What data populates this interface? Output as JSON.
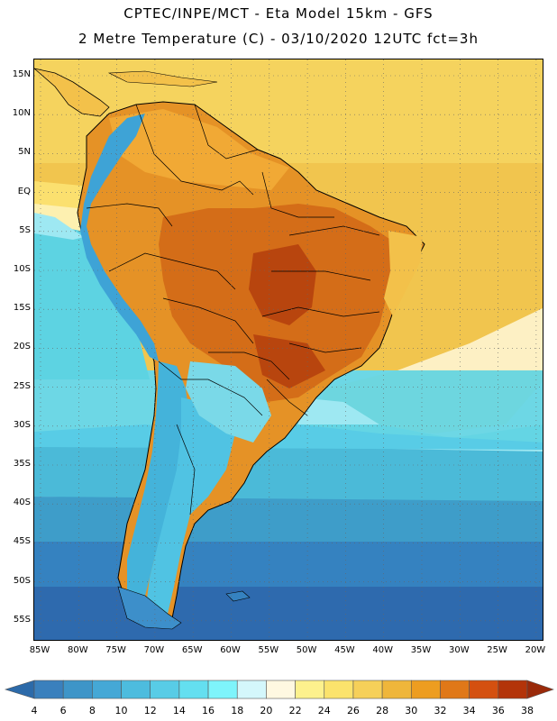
{
  "header": {
    "line1": "CPTEC/INPE/MCT -  Eta Model 15km - GFS",
    "line2": "2 Metre Temperature (C) - 03/10/2020 12UTC fct=3h"
  },
  "axes": {
    "lat_labels": [
      "15N",
      "10N",
      "5N",
      "EQ",
      "5S",
      "10S",
      "15S",
      "20S",
      "25S",
      "30S",
      "35S",
      "40S",
      "45S",
      "50S",
      "55S"
    ],
    "lon_labels": [
      "85W",
      "80W",
      "75W",
      "70W",
      "65W",
      "60W",
      "55W",
      "50W",
      "45W",
      "40W",
      "35W",
      "30W",
      "25W",
      "20W"
    ]
  },
  "colorbar": {
    "labels": [
      "4",
      "6",
      "8",
      "10",
      "12",
      "14",
      "16",
      "18",
      "20",
      "22",
      "24",
      "26",
      "28",
      "30",
      "32",
      "34",
      "36",
      "38"
    ],
    "colors": [
      "#2c6aa9",
      "#3a80bd",
      "#3e95c8",
      "#45a8d6",
      "#4dbcde",
      "#58cce6",
      "#64dff0",
      "#7ef4fb",
      "#d4f7fb",
      "#fff8e1",
      "#fdf18d",
      "#fbe36c",
      "#f6d059",
      "#efb63b",
      "#ed9d20",
      "#e07818",
      "#d45010",
      "#b33409",
      "#9a2a0a"
    ]
  },
  "map": {
    "sea_colors": {
      "north": "#f5d35e",
      "tropical": "#f1c54e",
      "subtropic_light": "#fdf0c4",
      "s1": "#9ee8f2",
      "s2": "#5dd3e2",
      "s3": "#4bbad8",
      "s4": "#3e9dc9",
      "s5": "#3582c0",
      "s6": "#2e6aae"
    },
    "land_colors": {
      "warm": "#e59226",
      "hot": "#d46d18",
      "core": "#b8450e",
      "andes_n": "#3ea3d6",
      "andes_s": "#44b3da",
      "patagonia": "#50c3e3",
      "south_tip": "#3d8fca",
      "coast_warm": "#f3c14a"
    }
  }
}
